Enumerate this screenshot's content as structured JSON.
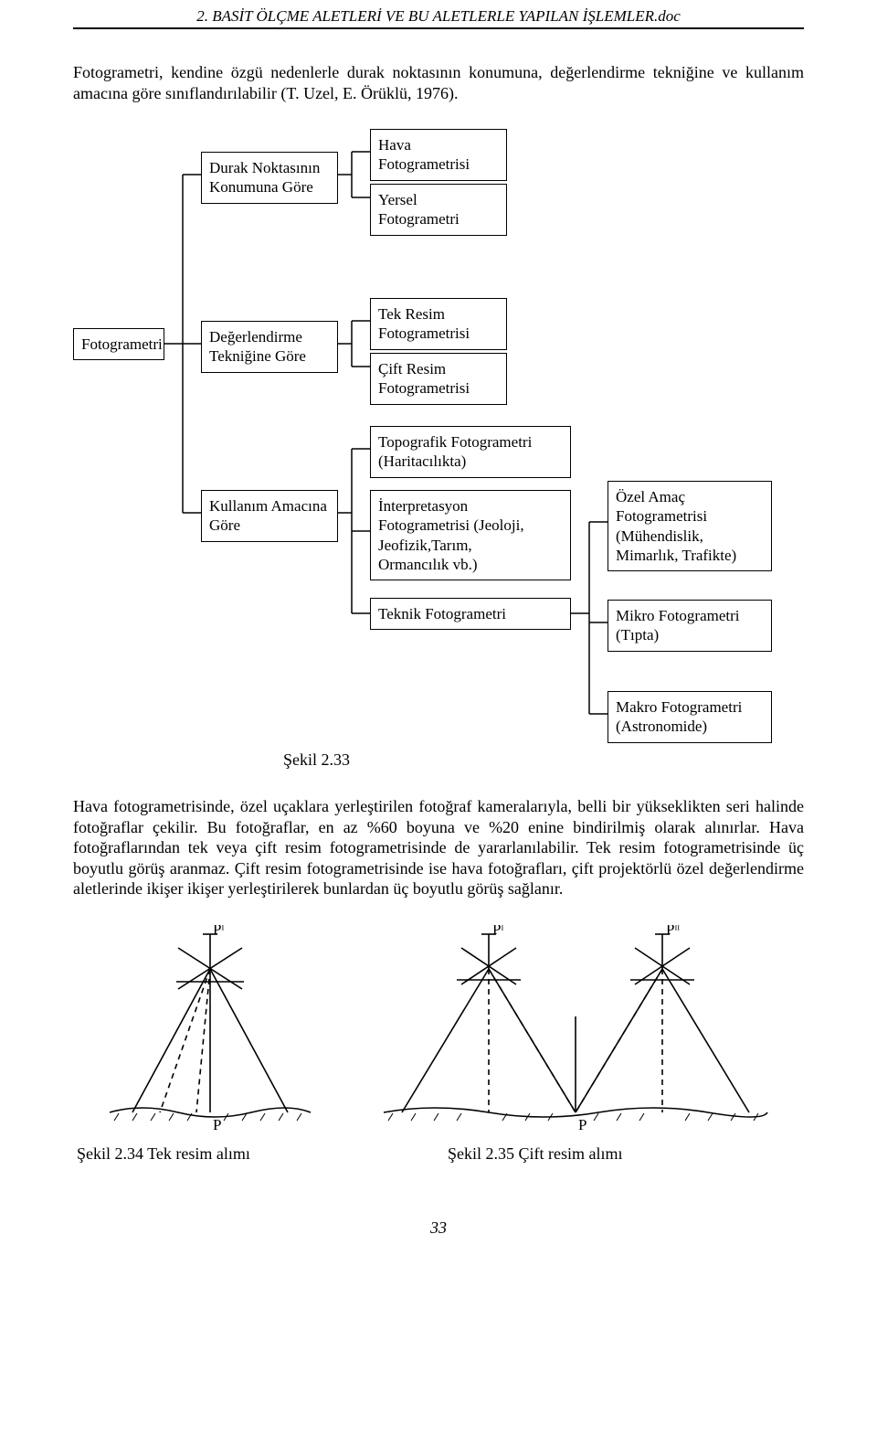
{
  "header": {
    "title": "2. BASİT  ÖLÇME  ALETLERİ VE BU ALETLERLE YAPILAN İŞLEMLER.doc"
  },
  "intro_para": "Fotogrametri, kendine özgü nedenlerle durak noktasının konumuna, değerlendirme tekniğine ve kullanım amacına göre sınıflandırılabilir (T. Uzel, E. Örüklü, 1976).",
  "diagram": {
    "root": "Fotogrametri",
    "cat1": "Durak Noktasının\nKonumuna Göre",
    "cat2": "Değerlendirme\nTekniğine Göre",
    "cat3": "Kullanım Amacına\nGöre",
    "c1a": "Hava\nFotogrametrisi",
    "c1b": "Yersel\nFotogrametri",
    "c2a": "Tek Resim\nFotogrametrisi",
    "c2b": "Çift Resim\nFotogrametrisi",
    "c3a": "Topografik Fotogrametri\n(Haritacılıkta)",
    "c3b": "İnterpretasyon\nFotogrametrisi (Jeoloji,\nJeofizik,Tarım,\nOrmancılık vb.)",
    "c3c": "Teknik Fotogrametri",
    "c3c1": "Özel Amaç\nFotogrametrisi\n(Mühendislik,\nMimarlık, Trafikte)",
    "c3c2": "Mikro Fotogrametri\n(Tıpta)",
    "c3c3": "Makro Fotogrametri\n(Astronomide)",
    "caption": "Şekil  2.33"
  },
  "body_para": "Hava fotogrametrisinde, özel uçaklara yerleştirilen fotoğraf kameralarıyla, belli bir yükseklikten seri halinde fotoğraflar çekilir. Bu fotoğraflar, en az %60 boyuna ve %20 enine bindirilmiş olarak alınırlar. Hava fotoğraflarından tek veya çift resim fotogrametrisinde de yararlanılabilir. Tek resim fotogrametrisinde üç boyutlu görüş aranmaz. Çift resim fotogrametrisinde ise hava fotoğrafları, çift projektörlü özel değerlendirme aletlerinde ikişer ikişer yerleştirilerek  bunlardan üç boyutlu görüş sağlanır.",
  "fig": {
    "single": {
      "p_top": "Pˡ",
      "p_bottom": "P",
      "caption": "Şekil  2.34  Tek resim alımı",
      "colors": {
        "solid": "#000000",
        "dash": "#000000"
      },
      "stroke_width": 1.6,
      "dash_pattern": "6,5"
    },
    "double": {
      "p_top_left": "Pˡ",
      "p_top_right": "Pᶦᶦ",
      "p_bottom": "P",
      "caption": "Şekil  2.35  Çift resim alımı",
      "colors": {
        "solid": "#000000",
        "dash": "#000000"
      },
      "stroke_width": 1.6,
      "dash_pattern": "6,5"
    }
  },
  "page_number": "33",
  "style": {
    "body_bg": "#ffffff",
    "text_color": "#000000",
    "box_border": "#000000",
    "connector_color": "#000000",
    "font_family": "Times New Roman",
    "body_fontsize_pt": 13,
    "header_fontsize_pt": 12
  }
}
